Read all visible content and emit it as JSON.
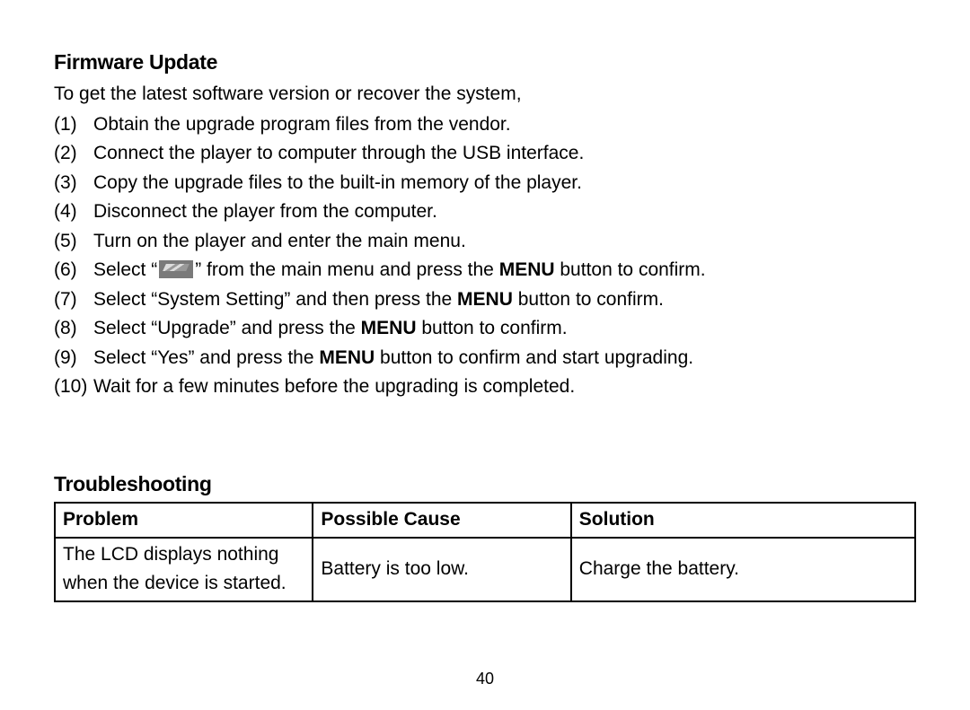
{
  "firmware": {
    "heading": "Firmware Update",
    "intro": "To get the latest software version or recover the system,",
    "steps": [
      {
        "n": "(1)",
        "t": "Obtain the upgrade program files from the vendor."
      },
      {
        "n": "(2)",
        "t": "Connect the player to computer through the USB interface."
      },
      {
        "n": "(3)",
        "t": "Copy the upgrade files to the built-in memory of the player."
      },
      {
        "n": "(4)",
        "t": "Disconnect the player from the computer."
      },
      {
        "n": "(5)",
        "t": "Turn on the player and enter the main menu."
      },
      {
        "n": "(6)",
        "pre": "Select “",
        "post": "” from the main menu and press the ",
        "bold": "MENU",
        "tail": " button to confirm."
      },
      {
        "n": "(7)",
        "pre": "Select “System Setting” and then press the ",
        "bold": "MENU",
        "tail": " button to confirm."
      },
      {
        "n": "(8)",
        "pre": "Select “Upgrade” and press the ",
        "bold": "MENU",
        "tail": " button to confirm."
      },
      {
        "n": "(9)",
        "pre": "Select “Yes” and press the ",
        "bold": "MENU",
        "tail": " button to confirm and start upgrading."
      },
      {
        "n": "(10)",
        "t": "Wait for a few minutes before the upgrading is completed."
      }
    ]
  },
  "troubleshooting": {
    "heading": "Troubleshooting",
    "columns": [
      "Problem",
      "Possible Cause",
      "Solution"
    ],
    "rows": [
      [
        "The LCD displays nothing when the device is started.",
        "Battery is too low.",
        "Charge the battery."
      ]
    ]
  },
  "page_number": "40",
  "colors": {
    "text": "#000000",
    "background": "#ffffff",
    "border": "#000000"
  },
  "typography": {
    "body_fontsize_pt": 16,
    "heading_fontsize_pt": 17,
    "heading_weight": 900
  }
}
